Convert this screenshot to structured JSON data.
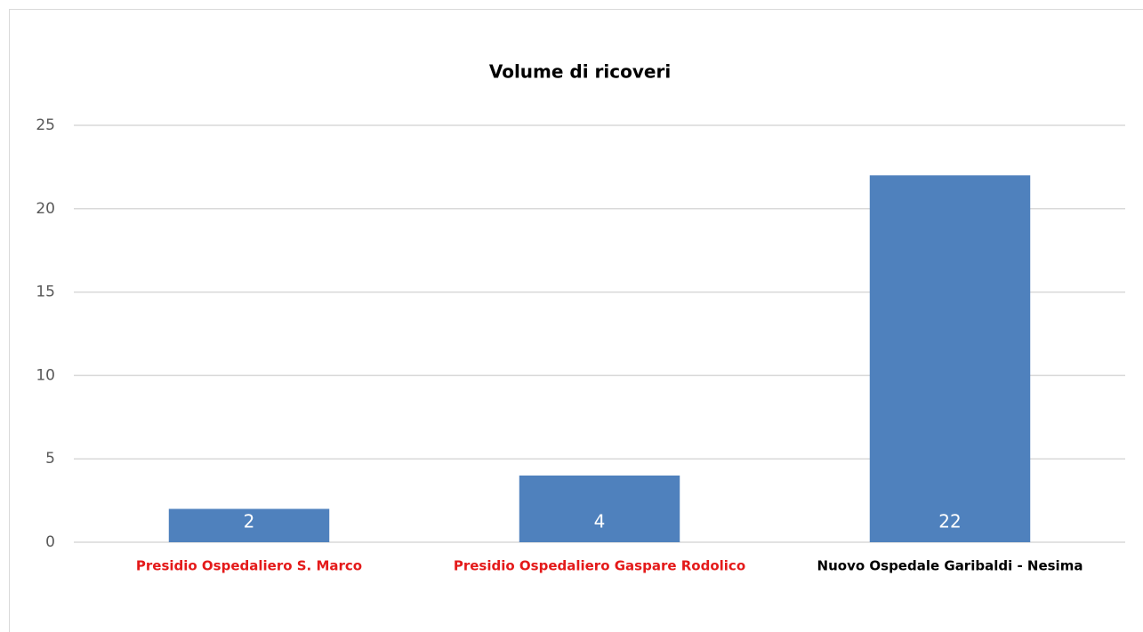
{
  "chart_data": {
    "type": "bar",
    "title": "Volume di ricoveri",
    "categories": [
      "Presidio Ospedaliero S. Marco",
      "Presidio Ospedaliero Gaspare Rodolico",
      "Nuovo Ospedale Garibaldi - Nesima"
    ],
    "category_colors": [
      "#e41a1a",
      "#e41a1a",
      "#000000"
    ],
    "values": [
      2,
      4,
      22
    ],
    "color": "#4f81bd",
    "ylim": [
      0,
      25
    ],
    "yticks": [
      0,
      5,
      10,
      15,
      20,
      25
    ],
    "grid": true
  }
}
